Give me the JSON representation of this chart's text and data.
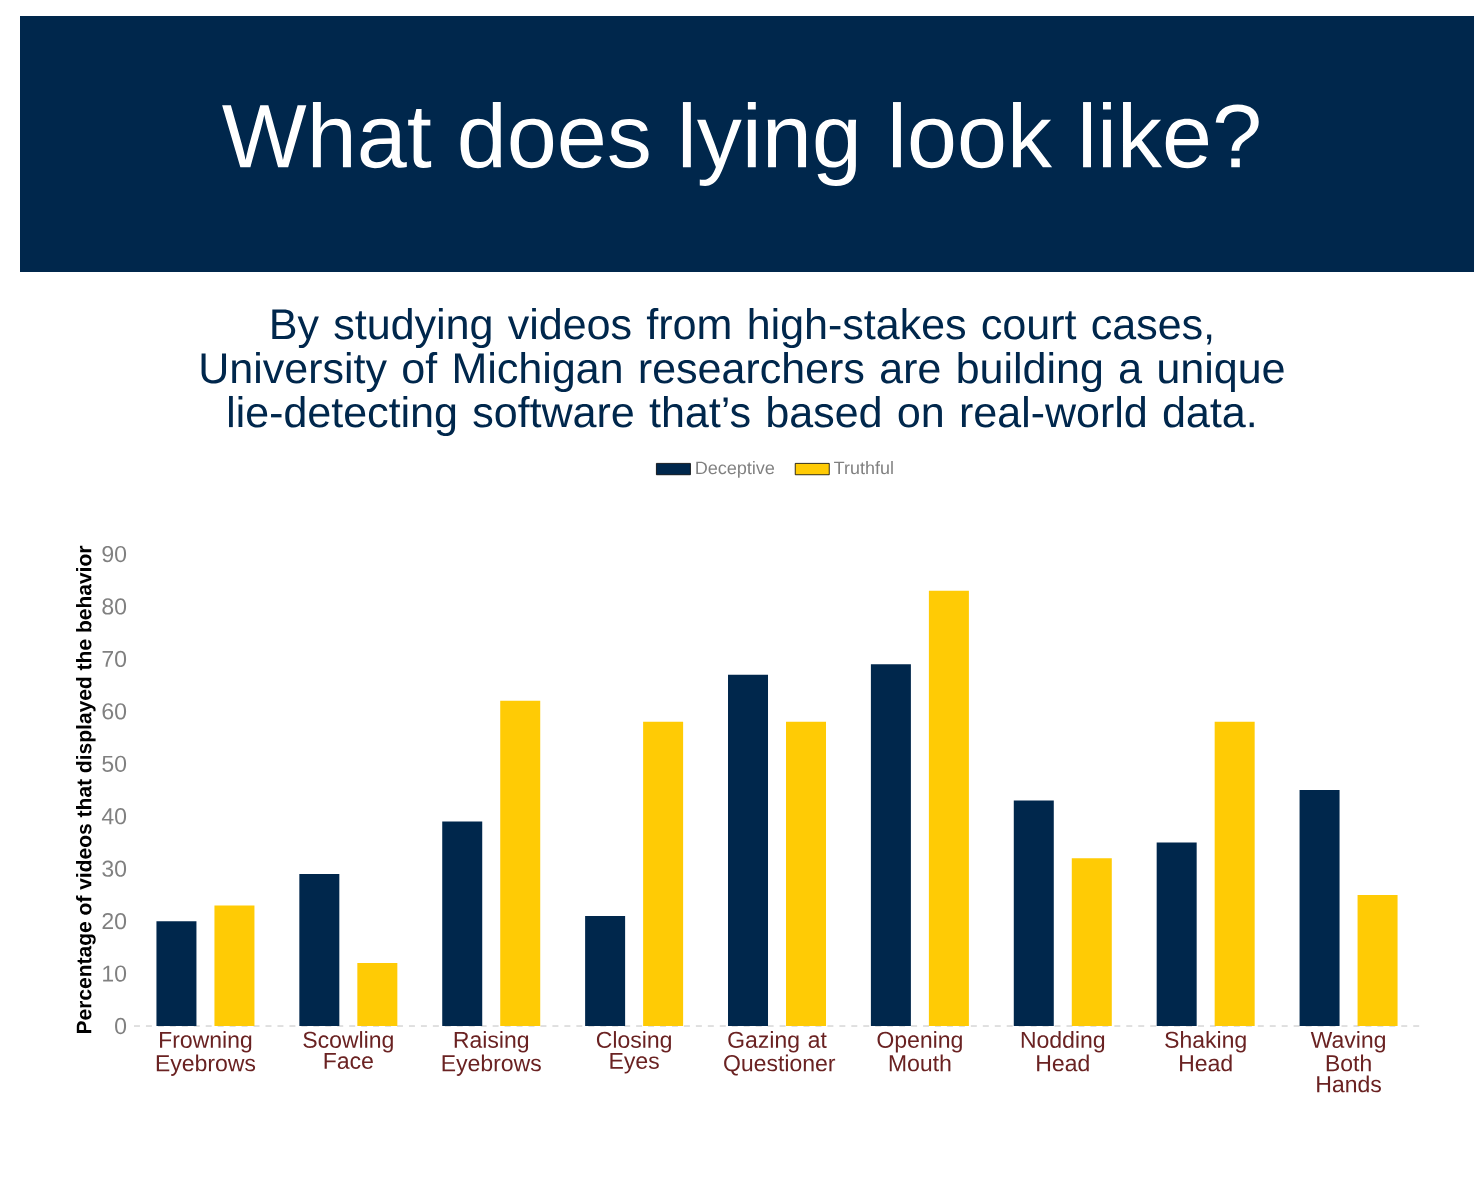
{
  "chart_data": {
    "type": "bar",
    "title": "What does lying look like?",
    "subtitle": "By studying videos from high-stakes court cases, University of Michigan researchers are building a unique lie-detecting software that’s based on real-world data.",
    "categories": [
      "Frowning Eyebrows",
      "Scowling Face",
      "Raising Eyebrows",
      "Closing Eyes",
      "Gazing at Questioner",
      "Opening Mouth",
      "Nodding Head",
      "Shaking Head",
      "Waving Both Hands"
    ],
    "series": [
      {
        "name": "Deceptive",
        "color": "#00274c",
        "values": [
          20,
          29,
          39,
          21,
          67,
          69,
          43,
          35,
          45
        ]
      },
      {
        "name": "Truthful",
        "color": "#ffcb05",
        "values": [
          23,
          12,
          62,
          58,
          58,
          83,
          32,
          58,
          25
        ]
      }
    ],
    "ylabel": "Percentage of videos that displayed the behavior",
    "ylim": [
      0,
      90
    ],
    "yticks": [
      0,
      10,
      20,
      30,
      40,
      50,
      60,
      70,
      80,
      90
    ],
    "legend": "top"
  }
}
